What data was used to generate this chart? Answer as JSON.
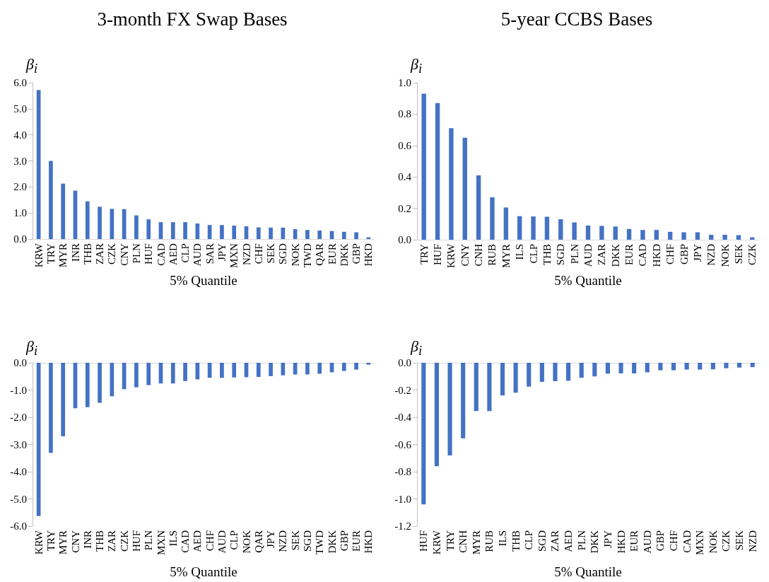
{
  "chart_data": [
    {
      "type": "bar",
      "title": "3-month FX Swap Bases",
      "ylabel": "β$_{i}$",
      "xlabel": "5% Quantile",
      "color": "#4472c4",
      "categories": [
        "KRW",
        "TRY",
        "MYR",
        "INR",
        "THB",
        "ZAR",
        "CZK",
        "CNY",
        "PLN",
        "HUF",
        "CAD",
        "AED",
        "CLP",
        "AUD",
        "SAR",
        "JPY",
        "MXN",
        "NZD",
        "CHF",
        "SEK",
        "SGD",
        "NOK",
        "TWD",
        "QAR",
        "EUR",
        "DKK",
        "GBP",
        "HKD"
      ],
      "values": [
        5.72,
        3.0,
        2.13,
        1.86,
        1.45,
        1.24,
        1.16,
        1.15,
        0.91,
        0.76,
        0.65,
        0.65,
        0.65,
        0.6,
        0.54,
        0.54,
        0.52,
        0.49,
        0.45,
        0.44,
        0.44,
        0.38,
        0.35,
        0.33,
        0.31,
        0.28,
        0.26,
        0.07
      ],
      "ylim": [
        0,
        6
      ],
      "yticks": [
        {
          "value": 0,
          "label": "0.0"
        },
        {
          "value": 1,
          "label": "1.0"
        },
        {
          "value": 2,
          "label": "2.0"
        },
        {
          "value": 3,
          "label": "3.0"
        },
        {
          "value": 4,
          "label": "4.0"
        },
        {
          "value": 5,
          "label": "5.0"
        },
        {
          "value": 6,
          "label": "6.0"
        }
      ]
    },
    {
      "type": "bar",
      "title": "5-year CCBS Bases",
      "ylabel": "β$_{i}$",
      "xlabel": "5% Quantile",
      "color": "#4472c4",
      "categories": [
        "TRY",
        "HUF",
        "KRW",
        "CNY",
        "CNH",
        "RUB",
        "MYR",
        "ILS",
        "CLP",
        "THB",
        "SGD",
        "PLN",
        "AUD",
        "ZAR",
        "DKK",
        "EUR",
        "CAD",
        "HKD",
        "CHF",
        "GBP",
        "JPY",
        "NZD",
        "NOK",
        "SEK",
        "CZK"
      ],
      "values": [
        0.93,
        0.87,
        0.71,
        0.65,
        0.41,
        0.27,
        0.205,
        0.15,
        0.148,
        0.146,
        0.13,
        0.11,
        0.09,
        0.088,
        0.084,
        0.068,
        0.062,
        0.062,
        0.05,
        0.047,
        0.047,
        0.031,
        0.031,
        0.029,
        0.015
      ],
      "ylim": [
        0,
        1
      ],
      "yticks": [
        {
          "value": 0,
          "label": "0.0"
        },
        0.2,
        0.4,
        0.6,
        0.8,
        {
          "value": 1,
          "label": "1.0"
        }
      ]
    },
    {
      "type": "bar",
      "ylabel": "β$_{i}$",
      "xlabel": "5% Quantile",
      "color": "#4472c4",
      "categories": [
        "KRW",
        "TRY",
        "MYR",
        "CNY",
        "INR",
        "THB",
        "ZAR",
        "CZK",
        "HUF",
        "PLN",
        "MXN",
        "ILS",
        "CAD",
        "AED",
        "CHF",
        "AUD",
        "CLP",
        "NOK",
        "QAR",
        "JPY",
        "NZD",
        "SEK",
        "SGD",
        "TWD",
        "DKK",
        "GBP",
        "EUR",
        "HKD"
      ],
      "values": [
        -5.63,
        -3.31,
        -2.7,
        -1.67,
        -1.63,
        -1.47,
        -1.23,
        -0.97,
        -0.9,
        -0.82,
        -0.76,
        -0.76,
        -0.67,
        -0.61,
        -0.55,
        -0.55,
        -0.54,
        -0.53,
        -0.52,
        -0.49,
        -0.46,
        -0.43,
        -0.43,
        -0.4,
        -0.35,
        -0.3,
        -0.25,
        -0.07
      ],
      "ylim": [
        -6,
        0
      ],
      "yticks": [
        {
          "value": -6,
          "label": "-6.0"
        },
        {
          "value": -5,
          "label": "-5.0"
        },
        {
          "value": -4,
          "label": "-4.0"
        },
        {
          "value": -3,
          "label": "-3.0"
        },
        {
          "value": -2,
          "label": "-2.0"
        },
        {
          "value": -1,
          "label": "-1.0"
        },
        {
          "value": 0,
          "label": "0.0"
        }
      ]
    },
    {
      "type": "bar",
      "ylabel": "β$_{i}$",
      "xlabel": "5% Quantile",
      "color": "#4472c4",
      "categories": [
        "HUF",
        "KRW",
        "TRY",
        "CNH",
        "MYR",
        "RUB",
        "ILS",
        "THB",
        "CLP",
        "SGD",
        "ZAR",
        "AED",
        "PLN",
        "DKK",
        "JPY",
        "HKD",
        "EUR",
        "AUD",
        "GBP",
        "CHF",
        "CAD",
        "MXN",
        "NOK",
        "CZK",
        "SEK",
        "NZD"
      ],
      "values": [
        -1.04,
        -0.76,
        -0.68,
        -0.555,
        -0.355,
        -0.355,
        -0.24,
        -0.22,
        -0.175,
        -0.14,
        -0.135,
        -0.132,
        -0.11,
        -0.1,
        -0.08,
        -0.078,
        -0.078,
        -0.07,
        -0.055,
        -0.055,
        -0.05,
        -0.05,
        -0.048,
        -0.04,
        -0.035,
        -0.032
      ],
      "ylim": [
        -1.2,
        0
      ],
      "yticks": [
        -1.2,
        {
          "value": -1,
          "label": "-1.0"
        },
        -0.8,
        -0.6,
        -0.4,
        -0.2,
        {
          "value": 0,
          "label": "0.0"
        }
      ]
    }
  ]
}
